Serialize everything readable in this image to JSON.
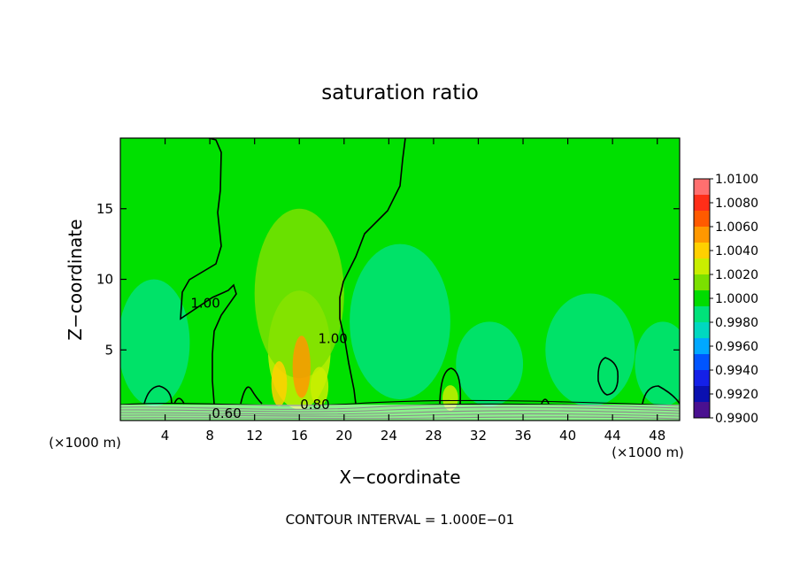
{
  "chart_data": {
    "type": "heatmap",
    "title": "saturation ratio",
    "xlabel": "X−coordinate",
    "ylabel": "Z−coordinate",
    "x_unit_left": "(×1000 m)",
    "x_unit_right": "(×1000 m)",
    "xlim": [
      0,
      50
    ],
    "ylim": [
      0,
      20
    ],
    "x_ticks": [
      4,
      8,
      12,
      16,
      20,
      24,
      28,
      32,
      36,
      40,
      44,
      48
    ],
    "y_ticks": [
      5,
      10,
      15
    ],
    "footer": "CONTOUR INTERVAL = 1.000E−01",
    "colorbar": {
      "levels": [
        "1.0100",
        "1.0080",
        "1.0060",
        "1.0040",
        "1.0020",
        "1.0000",
        "0.9980",
        "0.9960",
        "0.9940",
        "0.9920",
        "0.9900"
      ],
      "colors": [
        "#ff6f6f",
        "#ff2e18",
        "#ff5a00",
        "#ff9800",
        "#ffd000",
        "#c9ee00",
        "#7be000",
        "#00dc00",
        "#00e27a",
        "#00d8c0",
        "#00a8ff",
        "#0055ff",
        "#1420e8",
        "#0a10b0",
        "#4a1090"
      ]
    },
    "background_color": "#00e000",
    "contour_labels": [
      {
        "text": "1.00",
        "x": 7.6,
        "z": 8.0
      },
      {
        "text": "1.00",
        "x": 19.0,
        "z": 5.5
      },
      {
        "text": "0.60",
        "x": 9.5,
        "z": 0.2
      },
      {
        "text": "0.80",
        "x": 17.4,
        "z": 0.8
      }
    ],
    "field_features": [
      {
        "x": 16.0,
        "z": 5.0,
        "sx": 2.8,
        "sz": 4.2,
        "value": 1.0022
      },
      {
        "x": 16.0,
        "z": 9.0,
        "sx": 4.0,
        "sz": 6.0,
        "value": 1.0008
      },
      {
        "x": 16.2,
        "z": 3.8,
        "sx": 0.8,
        "sz": 2.2,
        "value": 1.005
      },
      {
        "x": 14.2,
        "z": 2.6,
        "sx": 0.7,
        "sz": 1.6,
        "value": 1.0035
      },
      {
        "x": 17.8,
        "z": 2.4,
        "sx": 0.8,
        "sz": 1.4,
        "value": 1.0032
      },
      {
        "x": 29.5,
        "z": 1.6,
        "sx": 0.7,
        "sz": 0.9,
        "value": 1.003
      },
      {
        "x": 25.0,
        "z": 7.0,
        "sx": 4.5,
        "sz": 5.5,
        "value": 0.9984
      },
      {
        "x": 3.0,
        "z": 5.5,
        "sx": 3.2,
        "sz": 4.5,
        "value": 0.9989
      },
      {
        "x": 42.0,
        "z": 5.0,
        "sx": 4.0,
        "sz": 4.0,
        "value": 0.999
      },
      {
        "x": 48.5,
        "z": 4.0,
        "sx": 2.5,
        "sz": 3.0,
        "value": 0.9991
      },
      {
        "x": 33.0,
        "z": 4.0,
        "sx": 3.0,
        "sz": 3.0,
        "value": 0.9992
      }
    ]
  }
}
